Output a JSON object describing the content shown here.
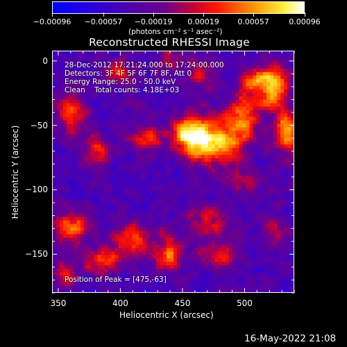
{
  "chart_data": {
    "type": "heatmap",
    "title": "Reconstructed RHESSI Image",
    "xlabel": "Heliocentric X (arcsec)",
    "ylabel": "Heliocentric Y (arcsec)",
    "xlim": [
      345,
      540
    ],
    "ylim": [
      -180,
      8
    ],
    "x_ticks": [
      "350",
      "400",
      "450",
      "500"
    ],
    "x_tick_values": [
      350,
      400,
      450,
      500
    ],
    "y_ticks": [
      "0",
      "−50",
      "−100",
      "−150"
    ],
    "y_tick_values": [
      0,
      -50,
      -100,
      -150
    ],
    "colorbar": {
      "tick_labels": [
        "−0.00096",
        "−0.00057",
        "−0.00019",
        "0.00019",
        "0.00057",
        "0.00096"
      ],
      "tick_values": [
        -0.00096,
        -0.00057,
        -0.00019,
        0.00019,
        0.00057,
        0.00096
      ],
      "unit_label": "(photons cm⁻² s⁻¹ asec⁻²)",
      "range": [
        -0.00096,
        0.00096
      ]
    },
    "annotations": [
      "28-Dec-2012 17:21:24.000 to 17:24:00.000",
      "Detectors: 3F 4F 5F 6F 7F 8F, Att 0",
      "Energy Range: 25.0 - 50.0 keV",
      "Clean    Total counts: 4.18E+03"
    ],
    "peak_text": "Position of Peak = [475,-63]",
    "peak": [
      475,
      -63
    ],
    "blobs": [
      {
        "x": 475,
        "y": -63,
        "amp": 1.0,
        "rx": 16,
        "ry": 12
      },
      {
        "x": 455,
        "y": -55,
        "amp": 0.75,
        "rx": 10,
        "ry": 10
      },
      {
        "x": 500,
        "y": -40,
        "amp": 0.7,
        "rx": 10,
        "ry": 12
      },
      {
        "x": 525,
        "y": -20,
        "amp": 0.8,
        "rx": 8,
        "ry": 12
      },
      {
        "x": 535,
        "y": -55,
        "amp": 0.85,
        "rx": 8,
        "ry": 12
      },
      {
        "x": 510,
        "y": -15,
        "amp": 0.65,
        "rx": 8,
        "ry": 8
      },
      {
        "x": 360,
        "y": -40,
        "amp": 0.7,
        "rx": 7,
        "ry": 12
      },
      {
        "x": 380,
        "y": -70,
        "amp": 0.55,
        "rx": 8,
        "ry": 10
      },
      {
        "x": 420,
        "y": -60,
        "amp": 0.55,
        "rx": 10,
        "ry": 8
      },
      {
        "x": 400,
        "y": -8,
        "amp": 0.5,
        "rx": 10,
        "ry": 8
      },
      {
        "x": 465,
        "y": -10,
        "amp": 0.45,
        "rx": 10,
        "ry": 8
      },
      {
        "x": 360,
        "y": -130,
        "amp": 0.7,
        "rx": 10,
        "ry": 10
      },
      {
        "x": 410,
        "y": -140,
        "amp": 0.6,
        "rx": 12,
        "ry": 10
      },
      {
        "x": 385,
        "y": -155,
        "amp": 0.55,
        "rx": 10,
        "ry": 8
      },
      {
        "x": 440,
        "y": -150,
        "amp": 0.65,
        "rx": 8,
        "ry": 10
      },
      {
        "x": 480,
        "y": -150,
        "amp": 0.55,
        "rx": 12,
        "ry": 8
      },
      {
        "x": 470,
        "y": -125,
        "amp": 0.5,
        "rx": 10,
        "ry": 8
      },
      {
        "x": 525,
        "y": -130,
        "amp": 0.4,
        "rx": 8,
        "ry": 8
      },
      {
        "x": 355,
        "y": -165,
        "amp": 0.45,
        "rx": 8,
        "ry": 8
      },
      {
        "x": 500,
        "y": -95,
        "amp": 0.35,
        "rx": 10,
        "ry": 8
      },
      {
        "x": 440,
        "y": 0,
        "amp": 0.4,
        "rx": 8,
        "ry": 6
      }
    ]
  },
  "footer_timestamp": "16-May-2022 21:08"
}
